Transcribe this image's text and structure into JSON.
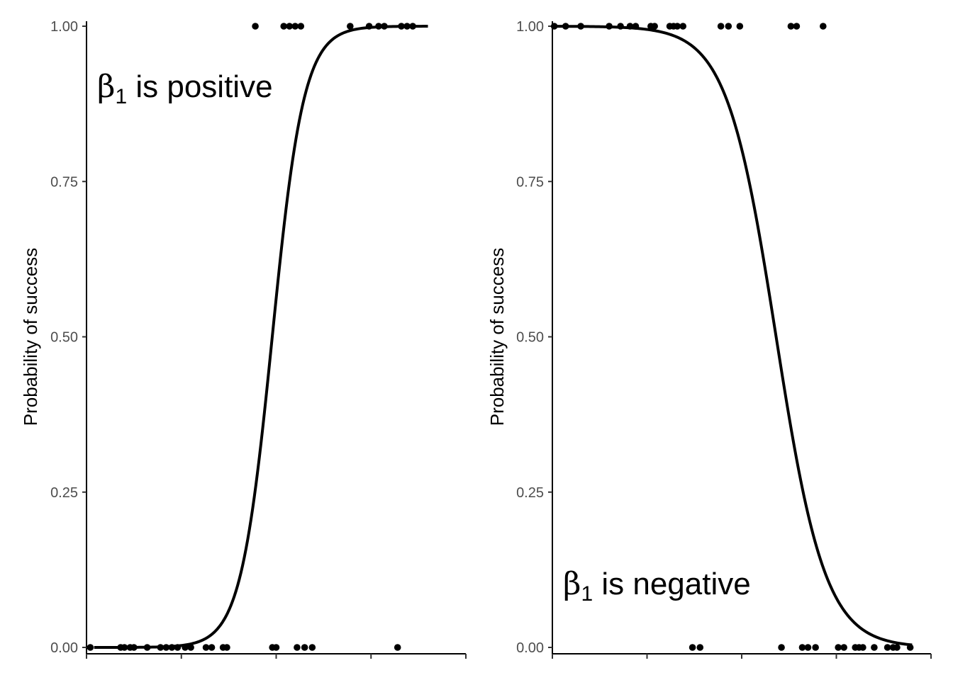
{
  "chart_data": [
    {
      "type": "scatter",
      "ylabel": "Probability of success",
      "xlabel": "",
      "ylim": [
        0,
        1
      ],
      "xlim": [
        0,
        10
      ],
      "y_ticks": [
        "0.00",
        "0.25",
        "0.50",
        "0.75",
        "1.00"
      ],
      "y_tick_values": [
        0,
        0.25,
        0.5,
        0.75,
        1
      ],
      "x_ticks": [
        0,
        2.5,
        5,
        7.5,
        10
      ],
      "x_tick_labels_shown": false,
      "annotation": {
        "greek": "β",
        "sub": "1",
        "text": " is positive",
        "placement": "top-left"
      },
      "grid": false,
      "points_y1": [
        4.45,
        5.2,
        5.35,
        5.5,
        5.65,
        6.95,
        7.45,
        7.7,
        7.85,
        8.3,
        8.45,
        8.6
      ],
      "points_y0": [
        0.1,
        0.9,
        1.0,
        1.15,
        1.25,
        1.6,
        1.95,
        2.1,
        2.25,
        2.4,
        2.6,
        2.75,
        3.15,
        3.3,
        3.6,
        3.7,
        4.9,
        5.0,
        5.55,
        5.75,
        5.95,
        8.2
      ],
      "curve": {
        "kind": "logistic",
        "b0": -11.8,
        "b1": 2.41,
        "x_range": [
          0.2,
          9.0
        ]
      }
    },
    {
      "type": "scatter",
      "ylabel": "Probability of success",
      "xlabel": "",
      "ylim": [
        0,
        1
      ],
      "xlim": [
        0,
        10
      ],
      "y_ticks": [
        "0.00",
        "0.25",
        "0.50",
        "0.75",
        "1.00"
      ],
      "y_tick_values": [
        0,
        0.25,
        0.5,
        0.75,
        1
      ],
      "x_ticks": [
        0,
        2.5,
        5,
        7.5,
        10
      ],
      "x_tick_labels_shown": false,
      "annotation": {
        "greek": "β",
        "sub": "1",
        "text": " is negative",
        "placement": "bottom-left"
      },
      "grid": false,
      "points_y1": [
        0.05,
        0.35,
        0.75,
        1.5,
        1.8,
        2.05,
        2.2,
        2.6,
        2.7,
        3.1,
        3.2,
        3.3,
        3.45,
        4.45,
        4.65,
        4.95,
        6.3,
        6.45,
        7.15
      ],
      "points_y0": [
        3.7,
        3.9,
        6.05,
        6.6,
        6.75,
        6.95,
        7.55,
        7.7,
        8.0,
        8.1,
        8.2,
        8.5,
        8.85,
        9.0,
        9.1,
        9.45
      ],
      "curve": {
        "kind": "logistic",
        "b0": 9.1,
        "b1": -1.54,
        "x_range": [
          0.0,
          9.5
        ]
      }
    }
  ]
}
